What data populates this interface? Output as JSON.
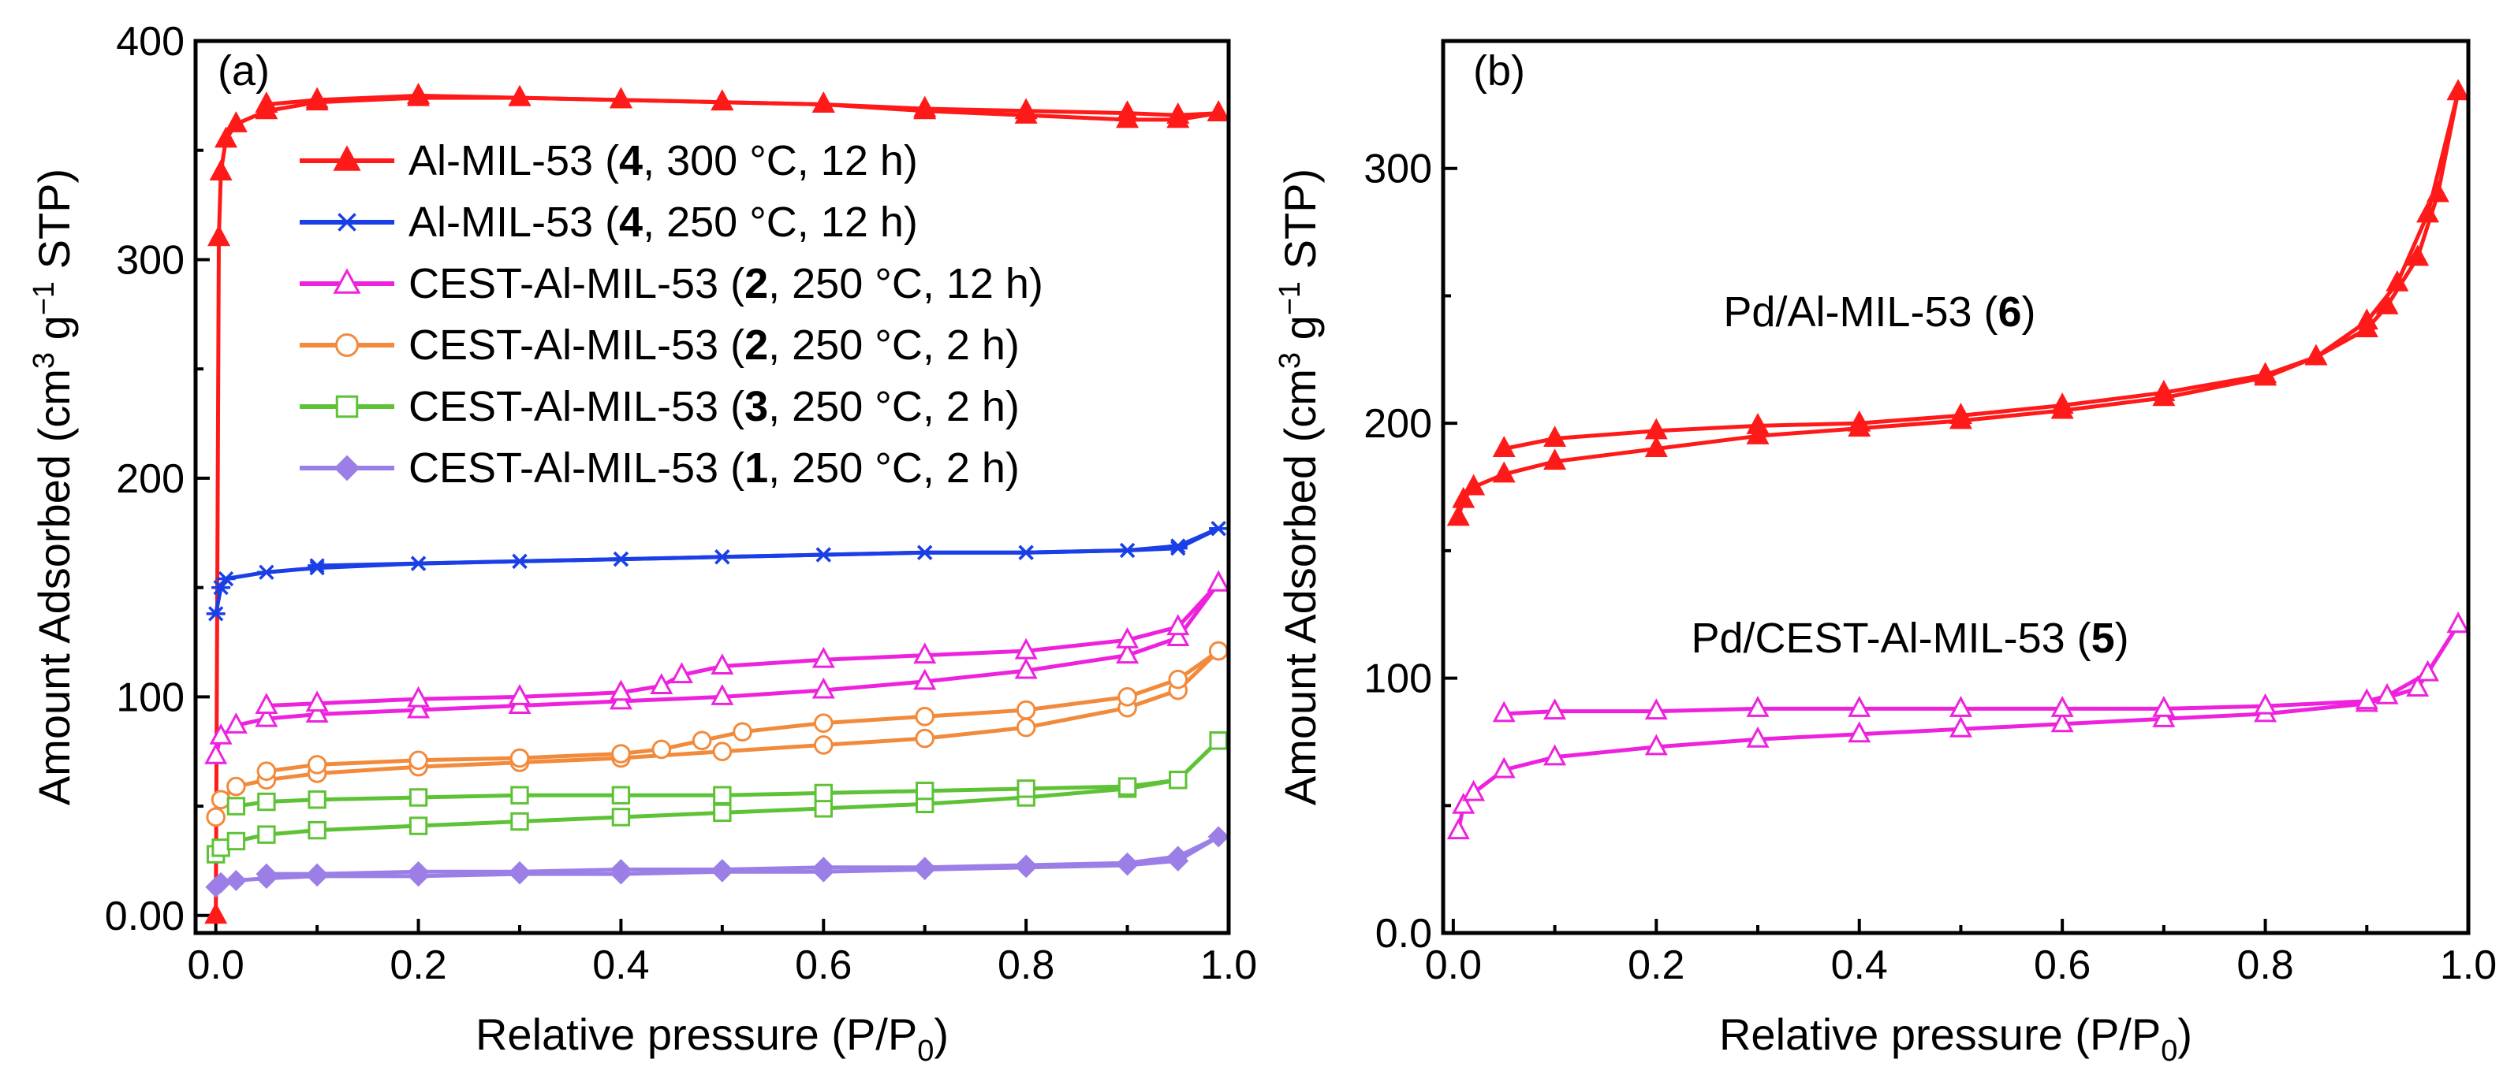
{
  "chart_data": [
    {
      "type": "line",
      "panel_label": "(a)",
      "xlabel": "Relative pressure (P/P",
      "xlabel_sub": "0",
      "xlabel_end": ")",
      "ylabel": "Amount Adsorbed (cm",
      "ylabel_sup1": "3",
      "ylabel_mid": " g",
      "ylabel_sup2": "−1",
      "ylabel_end": " STP)",
      "xlim": [
        -0.02,
        1.0
      ],
      "ylim": [
        -8,
        400
      ],
      "xticks": [
        0.0,
        0.2,
        0.4,
        0.6,
        0.8,
        1.0
      ],
      "xtick_labels": [
        "0.0",
        "0.2",
        "0.4",
        "0.6",
        "0.8",
        "1.0"
      ],
      "yticks": [
        0,
        100,
        200,
        300,
        400
      ],
      "ytick_labels": [
        "0.00",
        "100",
        "200",
        "300",
        "400"
      ],
      "legend_position": "top-left",
      "series": [
        {
          "name_pre": "Al-MIL-53 (",
          "name_bold": "4",
          "name_post": ", 300 °C, 12 h)",
          "color": "#ff1a1a",
          "marker": "triangle-filled",
          "adsorption": [
            [
              0.0,
              0
            ],
            [
              0.003,
              310
            ],
            [
              0.005,
              340
            ],
            [
              0.01,
              355
            ],
            [
              0.02,
              362
            ],
            [
              0.05,
              368
            ],
            [
              0.1,
              372
            ],
            [
              0.2,
              374
            ],
            [
              0.3,
              374
            ],
            [
              0.4,
              373
            ],
            [
              0.5,
              372
            ],
            [
              0.6,
              371
            ],
            [
              0.7,
              368
            ],
            [
              0.8,
              366
            ],
            [
              0.9,
              364
            ],
            [
              0.95,
              364
            ],
            [
              0.99,
              367
            ]
          ],
          "desorption": [
            [
              0.99,
              367
            ],
            [
              0.95,
              366
            ],
            [
              0.9,
              367
            ],
            [
              0.8,
              368
            ],
            [
              0.7,
              369
            ],
            [
              0.6,
              371
            ],
            [
              0.5,
              372
            ],
            [
              0.4,
              373
            ],
            [
              0.3,
              374
            ],
            [
              0.2,
              375
            ],
            [
              0.1,
              373
            ],
            [
              0.05,
              371
            ]
          ]
        },
        {
          "name_pre": "Al-MIL-53 (",
          "name_bold": "4",
          "name_post": ", 250 °C, 12 h)",
          "color": "#1a3fe6",
          "marker": "asterisk",
          "adsorption": [
            [
              0.0,
              138
            ],
            [
              0.005,
              150
            ],
            [
              0.01,
              154
            ],
            [
              0.05,
              157
            ],
            [
              0.1,
              159
            ],
            [
              0.2,
              161
            ],
            [
              0.3,
              162
            ],
            [
              0.4,
              163
            ],
            [
              0.5,
              164
            ],
            [
              0.6,
              165
            ],
            [
              0.7,
              166
            ],
            [
              0.8,
              166
            ],
            [
              0.9,
              167
            ],
            [
              0.95,
              168
            ],
            [
              0.99,
              177
            ]
          ],
          "desorption": [
            [
              0.99,
              177
            ],
            [
              0.95,
              169
            ],
            [
              0.9,
              167
            ],
            [
              0.8,
              166
            ],
            [
              0.7,
              166
            ],
            [
              0.6,
              165
            ],
            [
              0.5,
              164
            ],
            [
              0.4,
              163
            ],
            [
              0.3,
              162
            ],
            [
              0.2,
              161
            ],
            [
              0.1,
              160
            ]
          ]
        },
        {
          "name_pre": "CEST-Al-MIL-53 (",
          "name_bold": "2",
          "name_post": ", 250 °C, 12 h)",
          "color": "#ee22dd",
          "marker": "triangle-open",
          "adsorption": [
            [
              0.0,
              73
            ],
            [
              0.005,
              82
            ],
            [
              0.02,
              87
            ],
            [
              0.05,
              90
            ],
            [
              0.1,
              92
            ],
            [
              0.2,
              94
            ],
            [
              0.3,
              96
            ],
            [
              0.4,
              98
            ],
            [
              0.5,
              100
            ],
            [
              0.6,
              103
            ],
            [
              0.7,
              107
            ],
            [
              0.8,
              112
            ],
            [
              0.9,
              119
            ],
            [
              0.95,
              127
            ],
            [
              0.99,
              152
            ]
          ],
          "desorption": [
            [
              0.99,
              152
            ],
            [
              0.95,
              132
            ],
            [
              0.9,
              126
            ],
            [
              0.8,
              121
            ],
            [
              0.7,
              119
            ],
            [
              0.6,
              117
            ],
            [
              0.5,
              114
            ],
            [
              0.46,
              110
            ],
            [
              0.44,
              105
            ],
            [
              0.4,
              102
            ],
            [
              0.3,
              100
            ],
            [
              0.2,
              99
            ],
            [
              0.1,
              97
            ],
            [
              0.05,
              96
            ]
          ]
        },
        {
          "name_pre": "CEST-Al-MIL-53 (",
          "name_bold": "2",
          "name_post": ", 250 °C, 2 h)",
          "color": "#f28a3c",
          "marker": "circle-open",
          "adsorption": [
            [
              0.0,
              45
            ],
            [
              0.005,
              53
            ],
            [
              0.02,
              59
            ],
            [
              0.05,
              62
            ],
            [
              0.1,
              65
            ],
            [
              0.2,
              68
            ],
            [
              0.3,
              70
            ],
            [
              0.4,
              72
            ],
            [
              0.5,
              75
            ],
            [
              0.6,
              78
            ],
            [
              0.7,
              81
            ],
            [
              0.8,
              86
            ],
            [
              0.9,
              95
            ],
            [
              0.95,
              103
            ],
            [
              0.99,
              121
            ]
          ],
          "desorption": [
            [
              0.99,
              121
            ],
            [
              0.95,
              108
            ],
            [
              0.9,
              100
            ],
            [
              0.8,
              94
            ],
            [
              0.7,
              91
            ],
            [
              0.6,
              88
            ],
            [
              0.52,
              84
            ],
            [
              0.48,
              80
            ],
            [
              0.44,
              76
            ],
            [
              0.4,
              74
            ],
            [
              0.3,
              72
            ],
            [
              0.2,
              71
            ],
            [
              0.1,
              69
            ],
            [
              0.05,
              66
            ]
          ]
        },
        {
          "name_pre": "CEST-Al-MIL-53 (",
          "name_bold": "3",
          "name_post": ", 250 °C, 2 h)",
          "color": "#5ec236",
          "marker": "square-open",
          "adsorption": [
            [
              0.0,
              28
            ],
            [
              0.005,
              31
            ],
            [
              0.02,
              34
            ],
            [
              0.05,
              37
            ],
            [
              0.1,
              39
            ],
            [
              0.2,
              41
            ],
            [
              0.3,
              43
            ],
            [
              0.4,
              45
            ],
            [
              0.5,
              47
            ],
            [
              0.6,
              49
            ],
            [
              0.7,
              51
            ],
            [
              0.8,
              54
            ],
            [
              0.9,
              58
            ],
            [
              0.95,
              62
            ],
            [
              0.99,
              80
            ]
          ],
          "desorption": [
            [
              0.99,
              80
            ],
            [
              0.95,
              62
            ],
            [
              0.9,
              59
            ],
            [
              0.8,
              58
            ],
            [
              0.7,
              57
            ],
            [
              0.6,
              56
            ],
            [
              0.5,
              55
            ],
            [
              0.4,
              55
            ],
            [
              0.3,
              55
            ],
            [
              0.2,
              54
            ],
            [
              0.1,
              53
            ],
            [
              0.05,
              52
            ],
            [
              0.02,
              50
            ]
          ]
        },
        {
          "name_pre": "CEST-Al-MIL-53 (",
          "name_bold": "1",
          "name_post": ", 250 °C, 2 h)",
          "color": "#9b7fe6",
          "marker": "diamond-filled",
          "adsorption": [
            [
              0.0,
              13
            ],
            [
              0.005,
              15
            ],
            [
              0.02,
              16
            ],
            [
              0.05,
              17
            ],
            [
              0.1,
              18
            ],
            [
              0.2,
              18
            ],
            [
              0.3,
              19
            ],
            [
              0.4,
              19
            ],
            [
              0.5,
              20
            ],
            [
              0.6,
              20
            ],
            [
              0.7,
              21
            ],
            [
              0.8,
              22
            ],
            [
              0.9,
              23
            ],
            [
              0.95,
              25
            ],
            [
              0.99,
              36
            ]
          ],
          "desorption": [
            [
              0.99,
              36
            ],
            [
              0.95,
              27
            ],
            [
              0.9,
              24
            ],
            [
              0.8,
              23
            ],
            [
              0.7,
              22
            ],
            [
              0.6,
              22
            ],
            [
              0.5,
              21
            ],
            [
              0.4,
              21
            ],
            [
              0.3,
              20
            ],
            [
              0.2,
              20
            ],
            [
              0.1,
              19
            ],
            [
              0.05,
              19
            ]
          ]
        }
      ]
    },
    {
      "type": "line",
      "panel_label": "(b)",
      "xlabel": "Relative pressure (P/P",
      "xlabel_sub": "0",
      "xlabel_end": ")",
      "ylabel": "Amount Adsorbed (cm",
      "ylabel_sup1": "3",
      "ylabel_mid": " g",
      "ylabel_sup2": "−1",
      "ylabel_end": " STP)",
      "xlim": [
        -0.01,
        1.0
      ],
      "ylim": [
        0,
        350
      ],
      "xticks": [
        0.0,
        0.2,
        0.4,
        0.6,
        0.8,
        1.0
      ],
      "xtick_labels": [
        "0.0",
        "0.2",
        "0.4",
        "0.6",
        "0.8",
        "1.0"
      ],
      "yticks": [
        0,
        100,
        200,
        300
      ],
      "ytick_labels": [
        "0.0",
        "100",
        "200",
        "300"
      ],
      "series": [
        {
          "label_pre": "Pd/Al-MIL-53 (",
          "label_bold": "6",
          "label_post": ")",
          "label_x": 0.42,
          "label_y": 238,
          "color": "#ff1a1a",
          "marker": "triangle-filled",
          "adsorption": [
            [
              0.005,
              163
            ],
            [
              0.01,
              170
            ],
            [
              0.02,
              175
            ],
            [
              0.05,
              180
            ],
            [
              0.1,
              185
            ],
            [
              0.2,
              190
            ],
            [
              0.3,
              195
            ],
            [
              0.4,
              198
            ],
            [
              0.5,
              201
            ],
            [
              0.6,
              205
            ],
            [
              0.7,
              210
            ],
            [
              0.8,
              218
            ],
            [
              0.85,
              226
            ],
            [
              0.9,
              240
            ],
            [
              0.93,
              255
            ],
            [
              0.96,
              282
            ],
            [
              0.99,
              330
            ]
          ],
          "desorption": [
            [
              0.99,
              330
            ],
            [
              0.97,
              290
            ],
            [
              0.95,
              265
            ],
            [
              0.92,
              246
            ],
            [
              0.9,
              237
            ],
            [
              0.85,
              226
            ],
            [
              0.8,
              219
            ],
            [
              0.7,
              212
            ],
            [
              0.6,
              207
            ],
            [
              0.5,
              203
            ],
            [
              0.4,
              200
            ],
            [
              0.3,
              199
            ],
            [
              0.2,
              197
            ],
            [
              0.1,
              194
            ],
            [
              0.05,
              190
            ]
          ]
        },
        {
          "label_pre": "Pd/CEST-Al-MIL-53 (",
          "label_bold": "5",
          "label_post": ")",
          "label_x": 0.45,
          "label_y": 110,
          "color": "#ee22dd",
          "marker": "triangle-open",
          "adsorption": [
            [
              0.005,
              40
            ],
            [
              0.01,
              50
            ],
            [
              0.02,
              55
            ],
            [
              0.05,
              64
            ],
            [
              0.1,
              69
            ],
            [
              0.2,
              73
            ],
            [
              0.3,
              76
            ],
            [
              0.4,
              78
            ],
            [
              0.5,
              80
            ],
            [
              0.6,
              82
            ],
            [
              0.7,
              84
            ],
            [
              0.8,
              86
            ],
            [
              0.9,
              90
            ],
            [
              0.95,
              96
            ],
            [
              0.99,
              121
            ]
          ],
          "desorption": [
            [
              0.99,
              121
            ],
            [
              0.96,
              102
            ],
            [
              0.92,
              93
            ],
            [
              0.9,
              91
            ],
            [
              0.8,
              89
            ],
            [
              0.7,
              88
            ],
            [
              0.6,
              88
            ],
            [
              0.5,
              88
            ],
            [
              0.4,
              88
            ],
            [
              0.3,
              88
            ],
            [
              0.2,
              87
            ],
            [
              0.1,
              87
            ],
            [
              0.05,
              86
            ]
          ]
        }
      ]
    }
  ]
}
